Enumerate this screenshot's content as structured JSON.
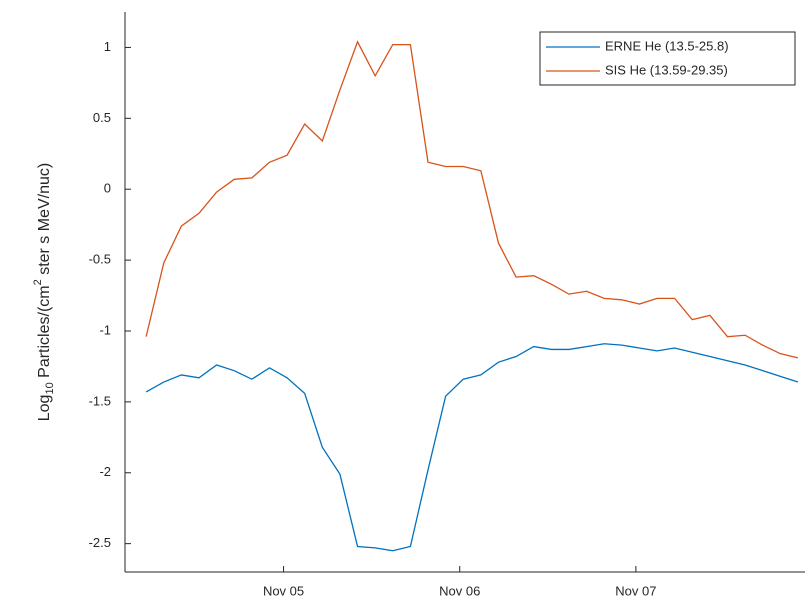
{
  "chart_data": {
    "type": "line",
    "y_label": {
      "base": "Log",
      "sub": "10",
      "mid": " Particles/(cm",
      "sup": "2",
      "rest": " ster s MeV/nuc)"
    },
    "x": [
      4.22,
      4.32,
      4.42,
      4.52,
      4.62,
      4.72,
      4.82,
      4.92,
      5.02,
      5.12,
      5.22,
      5.32,
      5.42,
      5.52,
      5.62,
      5.72,
      5.82,
      5.92,
      6.02,
      6.12,
      6.22,
      6.32,
      6.42,
      6.52,
      6.62,
      6.72,
      6.82,
      6.92,
      7.02,
      7.12,
      7.22,
      7.32,
      7.42,
      7.52,
      7.62,
      7.72,
      7.82,
      7.92
    ],
    "series": [
      {
        "name": "ERNE He (13.5-25.8)",
        "color": "#0072bd",
        "values": [
          -1.43,
          -1.36,
          -1.31,
          -1.33,
          -1.24,
          -1.28,
          -1.34,
          -1.26,
          -1.33,
          -1.44,
          -1.82,
          -2.01,
          -2.52,
          -2.53,
          -2.55,
          -2.52,
          -1.98,
          -1.46,
          -1.34,
          -1.31,
          -1.22,
          -1.18,
          -1.11,
          -1.13,
          -1.13,
          -1.11,
          -1.09,
          -1.1,
          -1.12,
          -1.14,
          -1.12,
          -1.15,
          -1.18,
          -1.21,
          -1.24,
          -1.28,
          -1.32,
          -1.36
        ]
      },
      {
        "name": "SIS He (13.59-29.35)",
        "color": "#d95319",
        "values": [
          -1.04,
          -0.52,
          -0.26,
          -0.17,
          -0.02,
          0.07,
          0.08,
          0.19,
          0.24,
          0.46,
          0.34,
          0.7,
          1.04,
          0.8,
          1.02,
          1.02,
          0.19,
          0.16,
          0.16,
          0.13,
          -0.38,
          -0.62,
          -0.61,
          -0.67,
          -0.74,
          -0.72,
          -0.77,
          -0.78,
          -0.81,
          -0.77,
          -0.77,
          -0.92,
          -0.89,
          -1.04,
          -1.03,
          -1.1,
          -1.16,
          -1.19
        ]
      }
    ],
    "xlim": [
      4.1,
      7.96
    ],
    "xticks": [
      {
        "value": 5,
        "label": "Nov 05"
      },
      {
        "value": 6,
        "label": "Nov 06"
      },
      {
        "value": 7,
        "label": "Nov 07"
      }
    ],
    "ylim": [
      -2.7,
      1.25
    ],
    "yticks": [
      1,
      0.5,
      0,
      -0.5,
      -1,
      -1.5,
      -2,
      -2.5
    ],
    "grid": false,
    "legend": "top-right"
  }
}
